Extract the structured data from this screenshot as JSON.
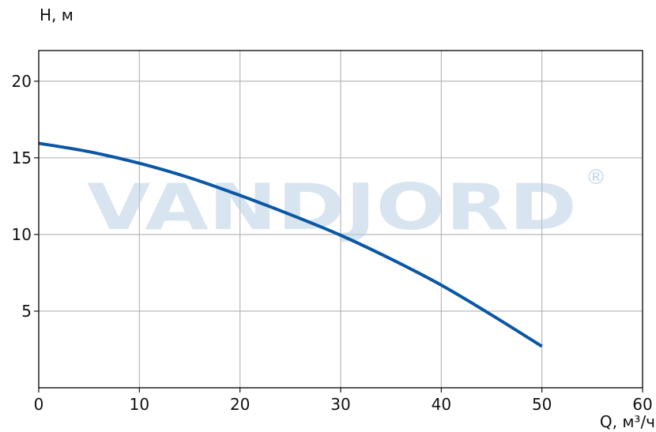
{
  "chart_data": {
    "type": "line",
    "xlabel": "Q, м³/ч",
    "ylabel": "H, м",
    "xlim": [
      0,
      60
    ],
    "ylim": [
      0,
      22
    ],
    "xticks": [
      "0",
      "10",
      "20",
      "30",
      "40",
      "50",
      "60"
    ],
    "yticks": [
      "5",
      "10",
      "15",
      "20"
    ],
    "grid": true,
    "series": [
      {
        "x": [
          0,
          5,
          10,
          15,
          20,
          25,
          30,
          35,
          40,
          45,
          50
        ],
        "y": [
          15.95,
          15.4,
          14.65,
          13.7,
          12.55,
          11.3,
          9.95,
          8.4,
          6.7,
          4.75,
          2.7
        ],
        "color": "#0b57a4"
      }
    ]
  },
  "watermark": {
    "text": "VANDJORD",
    "registered_mark": "®",
    "color": "#b9cfe2"
  }
}
